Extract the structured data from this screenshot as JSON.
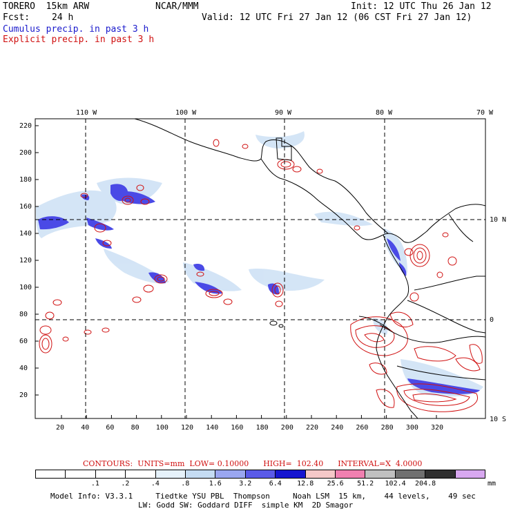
{
  "header": {
    "model": "TORERO  15km ARW",
    "org": "NCAR/MMM",
    "init": "Init: 12 UTC Thu 26 Jan 12",
    "fcst_label": "Fcst:",
    "fcst_value": "24 h",
    "valid": "Valid: 12 UTC Fri 27 Jan 12 (06 CST Fri 27 Jan 12)",
    "line_blue": "Cumulus precip. in past 3 h",
    "line_red": "Explicit precip. in past 3 h"
  },
  "map": {
    "lon_labels": [
      "110 W",
      "100 W",
      "90 W",
      "80 W",
      "70 W"
    ],
    "lat_labels": [
      "10 N",
      "0",
      "10 S"
    ],
    "x_ticks": [
      "20",
      "40",
      "60",
      "80",
      "100",
      "120",
      "140",
      "160",
      "180",
      "200",
      "220",
      "240",
      "260",
      "280",
      "300",
      "320"
    ],
    "y_ticks": [
      "220",
      "200",
      "180",
      "160",
      "140",
      "120",
      "100",
      "80",
      "60",
      "40",
      "20"
    ],
    "colors": {
      "cumulus": "#3030e0",
      "explicit": "#d01010",
      "coast": "#000000",
      "grid": "#000000"
    }
  },
  "legend": {
    "contours_text": "CONTOURS:  UNITS=mm  LOW= 0.10000      HIGH=  102.40      INTERVAL=X  4.0000",
    "bins": [
      "#ffffff",
      "#ffffff",
      "#ffffff",
      "#ffffff",
      "#e6f2fb",
      "#c5dcf3",
      "#9aa6f0",
      "#5a5ae8",
      "#1515d0",
      "#f5c8c8",
      "#f080b0",
      "#c0c0c0",
      "#707070",
      "#303030",
      "#d8a8f0"
    ],
    "labels": [
      ".1",
      ".2",
      ".4",
      ".8",
      "1.6",
      "3.2",
      "6.4",
      "12.8",
      "25.6",
      "51.2",
      "102.4",
      "204.8"
    ],
    "unit": "mm"
  },
  "footer": {
    "line1": "Model Info: V3.3.1     Tiedtke YSU PBL  Thompson     Noah LSM  15 km,    44 levels,    49 sec",
    "line2": "LW: Godd SW: Goddard DIFF  simple KM  2D Smagor"
  }
}
